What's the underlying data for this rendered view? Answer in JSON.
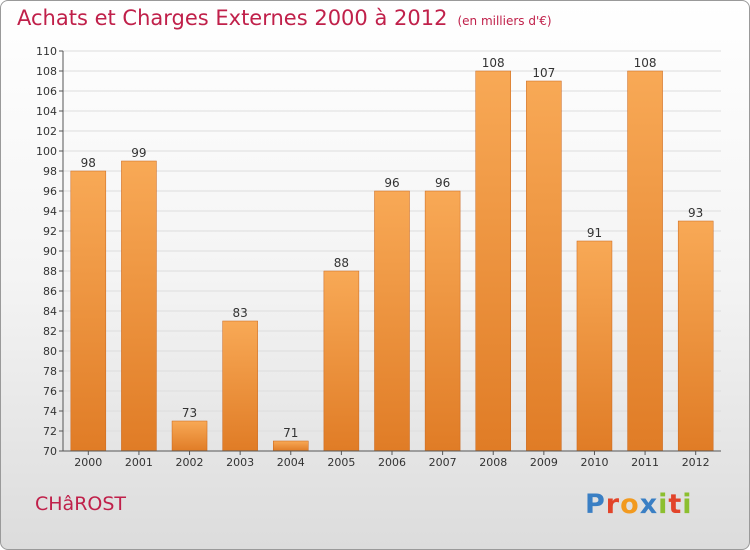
{
  "title": "Achats et Charges Externes 2000 à 2012",
  "unit_note": "(en milliers d'€)",
  "commune": "CHâROST",
  "logo": {
    "text": "Proxiti",
    "letters": [
      {
        "ch": "P",
        "color": "#3a7fc4"
      },
      {
        "ch": "r",
        "color": "#e2442a"
      },
      {
        "ch": "o",
        "color": "#f29a1f"
      },
      {
        "ch": "x",
        "color": "#3a7fc4"
      },
      {
        "ch": "i",
        "color": "#8cbf2f"
      },
      {
        "ch": "t",
        "color": "#e2442a"
      },
      {
        "ch": "i",
        "color": "#8cbf2f"
      }
    ]
  },
  "colors": {
    "title": "#c0204a",
    "bar_light": "#f8a956",
    "bar_dark": "#e07c26",
    "bar_stroke": "#c8641a",
    "grid": "#dddddd",
    "axis": "#555555"
  },
  "chart_data": {
    "type": "bar",
    "title": "Achats et Charges Externes 2000 à 2012",
    "ylabel": "",
    "xlabel": "",
    "categories": [
      "2000",
      "2001",
      "2002",
      "2003",
      "2004",
      "2005",
      "2006",
      "2007",
      "2008",
      "2009",
      "2010",
      "2011",
      "2012"
    ],
    "values": [
      98,
      99,
      73,
      83,
      71,
      88,
      96,
      96,
      108,
      107,
      91,
      108,
      93
    ],
    "ylim": [
      70,
      110
    ],
    "ytick_step": 2,
    "grid": true,
    "data_labels": true
  }
}
